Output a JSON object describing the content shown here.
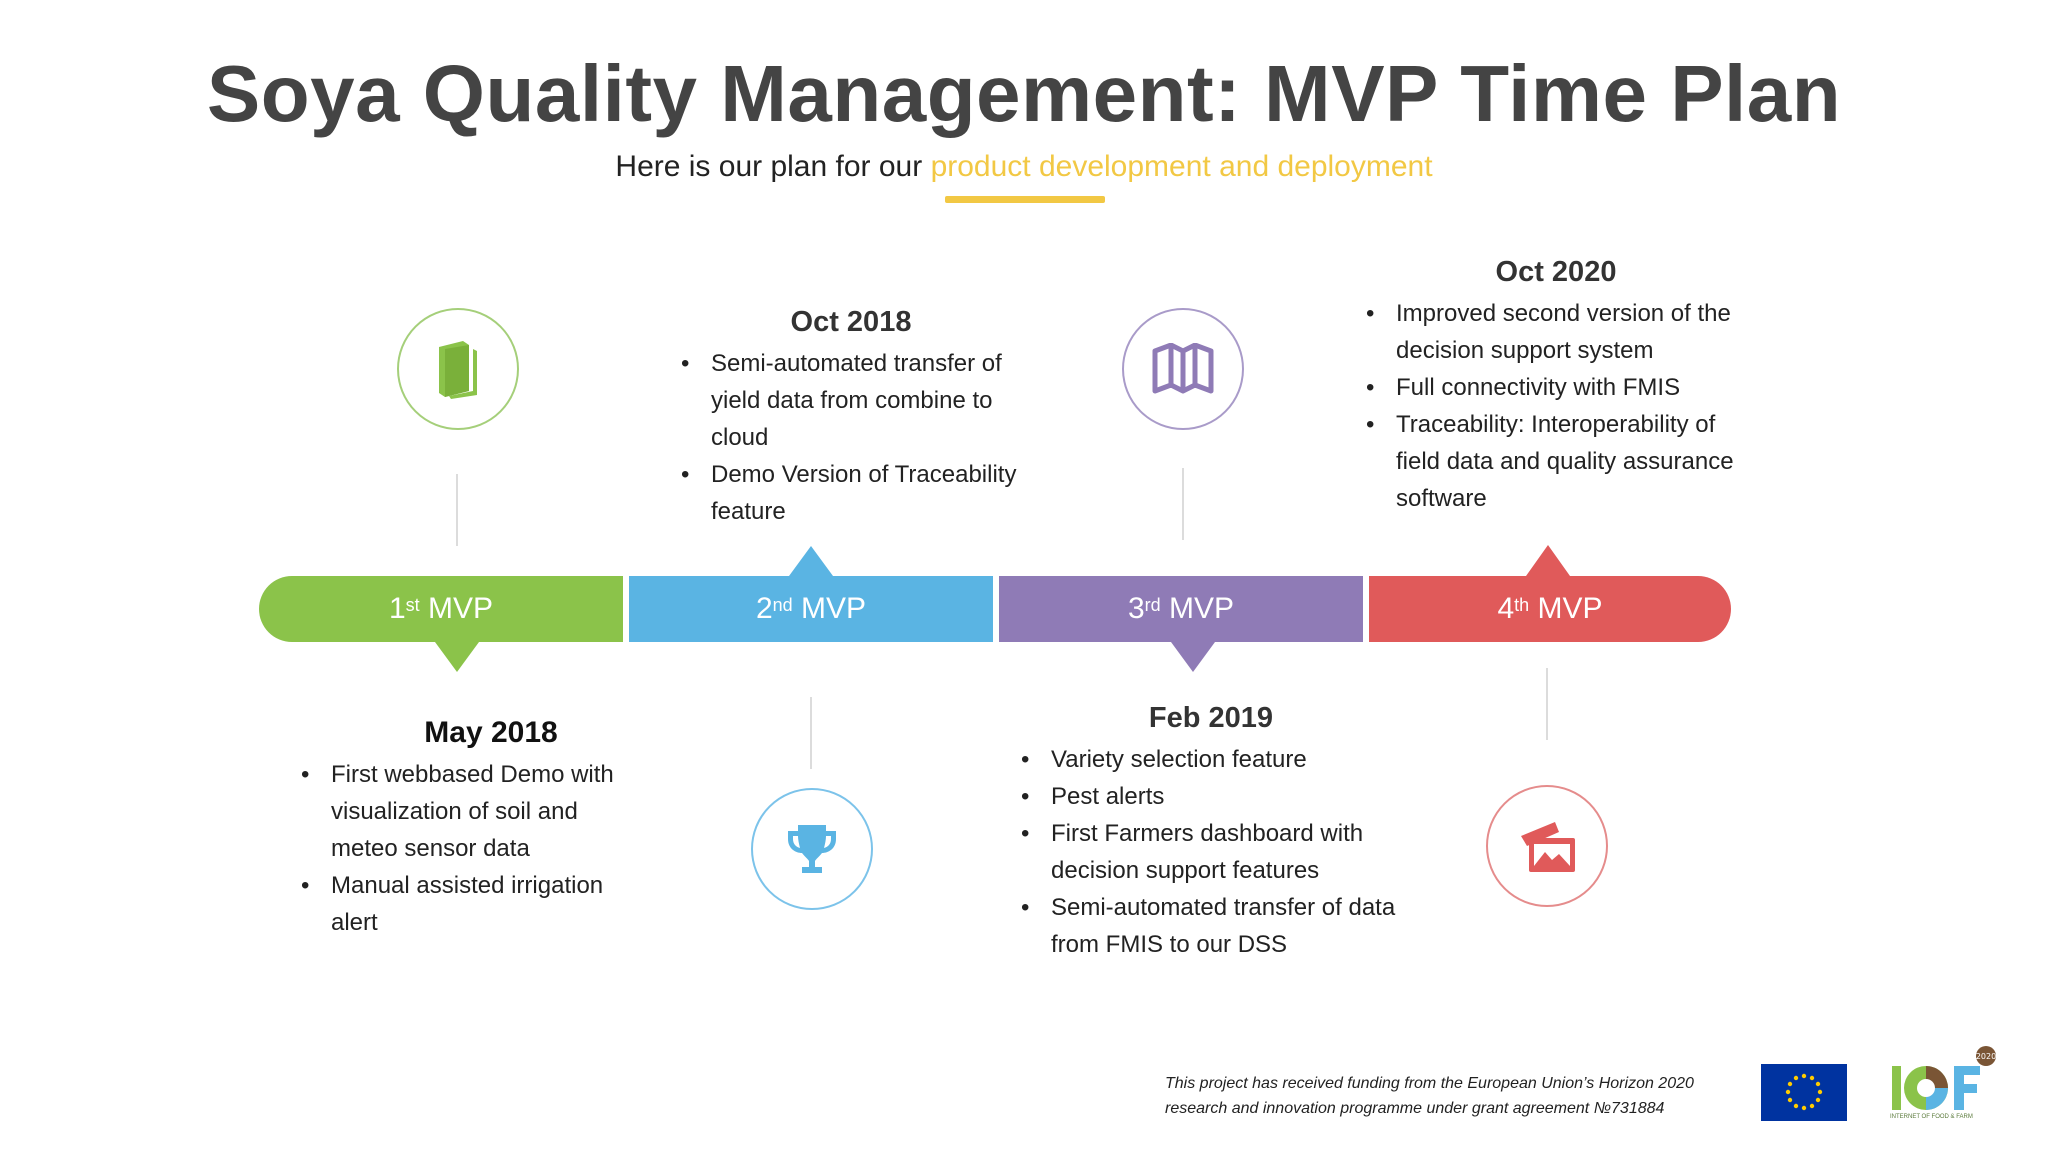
{
  "title": "Soya Quality Management: MVP Time Plan",
  "subtitle": {
    "prefix": "Here is our plan for our ",
    "highlight": "product development and deployment"
  },
  "colors": {
    "mvp1": "#8bc34a",
    "mvp2": "#5ab4e3",
    "mvp3": "#8f7bb6",
    "mvp4": "#e05a5a",
    "accent": "#f2c844"
  },
  "timeline": [
    {
      "num": "1",
      "suffix": "st",
      "label": "MVP",
      "icon": "book-icon"
    },
    {
      "num": "2",
      "suffix": "nd",
      "label": "MVP",
      "icon": "trophy-icon"
    },
    {
      "num": "3",
      "suffix": "rd",
      "label": "MVP",
      "icon": "map-icon"
    },
    {
      "num": "4",
      "suffix": "th",
      "label": "MVP",
      "icon": "photos-icon"
    }
  ],
  "milestones": [
    {
      "date": "May 2018",
      "items": [
        "First webbased Demo with visualization of soil and meteo sensor data",
        "Manual assisted irrigation alert"
      ]
    },
    {
      "date": "Oct 2018",
      "items": [
        "Semi-automated transfer of yield data from combine to cloud",
        "Demo Version of Traceability feature"
      ]
    },
    {
      "date": "Feb 2019",
      "items": [
        "Variety selection feature",
        "Pest alerts",
        "First Farmers dashboard with decision support features",
        "Semi-automated transfer of data from FMIS to our DSS"
      ]
    },
    {
      "date": "Oct 2020",
      "items": [
        "Improved second version of the decision support system",
        "Full connectivity with FMIS",
        "Traceability: Interoperability of field data and quality assurance software"
      ]
    }
  ],
  "footer": {
    "line1": "This project has received funding from the European Union’s Horizon 2020",
    "line2": "research and innovation programme under grant agreement №731884",
    "logo_caption": "INTERNET OF FOOD & FARM",
    "logo_badge": "2020"
  }
}
